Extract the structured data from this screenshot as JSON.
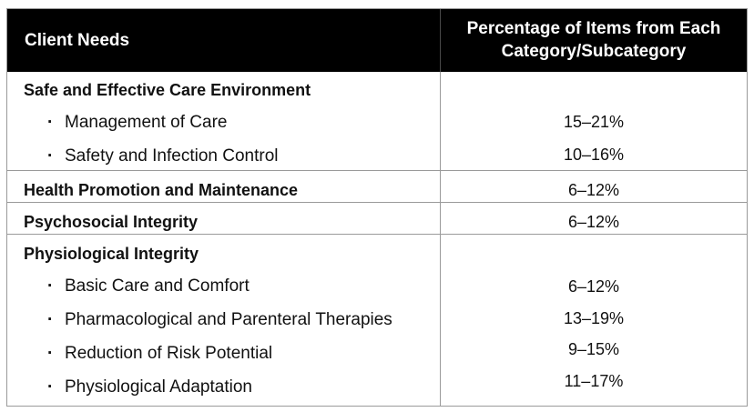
{
  "header": {
    "col1": "Client Needs",
    "col2_line1": "Percentage of Items from Each",
    "col2_line2": "Category/Subcategory"
  },
  "rows": [
    {
      "category": "Safe and Effective Care Environment",
      "subcategories": [
        {
          "label": "Management of Care",
          "percent": "15–21%"
        },
        {
          "label": "Safety and Infection Control",
          "percent": "10–16%"
        }
      ]
    },
    {
      "category": "Health Promotion and Maintenance",
      "percent": "6–12%"
    },
    {
      "category": "Psychosocial Integrity",
      "percent": "6–12%"
    },
    {
      "category": "Physiological Integrity",
      "subcategories": [
        {
          "label": "Basic Care and Comfort",
          "percent": "6–12%"
        },
        {
          "label": "Pharmacological and Parenteral Therapies",
          "percent": "13–19%"
        },
        {
          "label": "Reduction of Risk Potential",
          "percent": "9–15%"
        },
        {
          "label": "Physiological Adaptation",
          "percent": "11–17%"
        }
      ]
    }
  ],
  "bullet": "·"
}
